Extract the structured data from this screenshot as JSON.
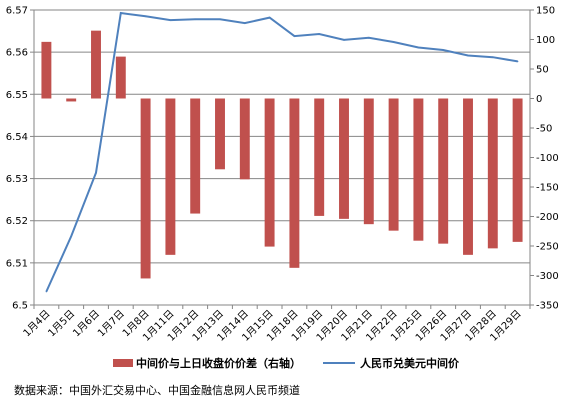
{
  "chart_data": {
    "type": "bar+line",
    "categories": [
      "1月4日",
      "1月5日",
      "1月6日",
      "1月7日",
      "1月8日",
      "1月11日",
      "1月12日",
      "1月13日",
      "1月14日",
      "1月15日",
      "1月18日",
      "1月19日",
      "1月20日",
      "1月21日",
      "1月22日",
      "1月25日",
      "1月26日",
      "1月27日",
      "1月28日",
      "1月29日"
    ],
    "series": [
      {
        "name": "中间价与上日收盘价价差（右轴）",
        "type": "bar",
        "axis": "right",
        "color": "#c0504d",
        "values": [
          96,
          -5,
          115,
          71,
          -305,
          -265,
          -195,
          -120,
          -137,
          -251,
          -287,
          -199,
          -204,
          -213,
          -224,
          -241,
          -246,
          -265,
          -254,
          -243
        ]
      },
      {
        "name": "人民币兑美元中间价",
        "type": "line",
        "axis": "left",
        "color": "#4f81bd",
        "values": [
          6.5032,
          6.5163,
          6.5314,
          6.5693,
          6.5685,
          6.5676,
          6.5678,
          6.5678,
          6.5669,
          6.5682,
          6.5638,
          6.5643,
          6.5629,
          6.5634,
          6.5624,
          6.5611,
          6.5605,
          6.5592,
          6.5588,
          6.5578
        ]
      }
    ],
    "y_left": {
      "min": 6.5,
      "max": 6.57,
      "step": 0.01,
      "ticks": [
        "6.5",
        "6.51",
        "6.52",
        "6.53",
        "6.54",
        "6.55",
        "6.56",
        "6.57"
      ]
    },
    "y_right": {
      "min": -350,
      "max": 150,
      "step": 50,
      "ticks": [
        "-350",
        "-300",
        "-250",
        "-200",
        "-150",
        "-100",
        "-50",
        "0",
        "50",
        "100",
        "150"
      ]
    },
    "grid": "horizontal",
    "legend_position": "bottom"
  },
  "source": "数据来源：中国外汇交易中心、中国金融信息网人民币频道"
}
